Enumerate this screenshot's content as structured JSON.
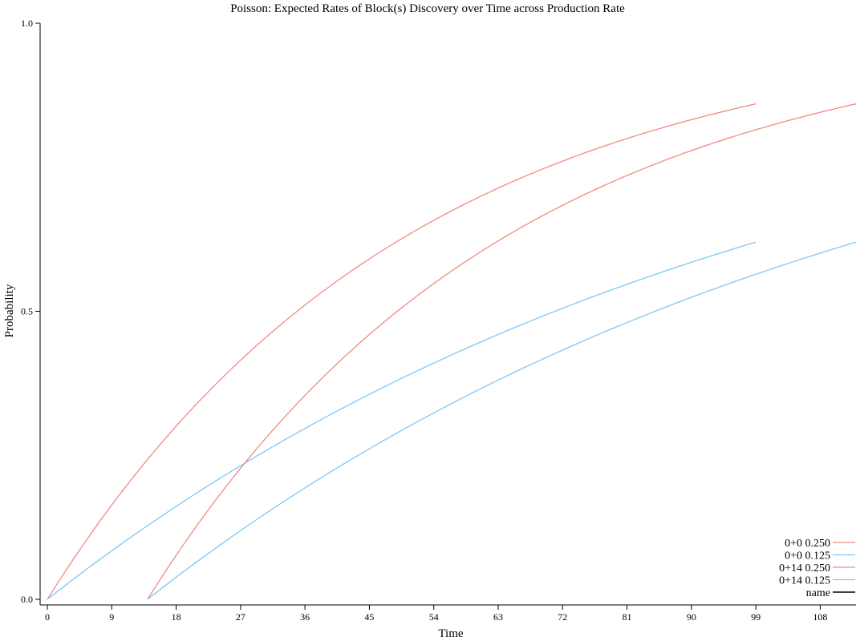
{
  "chart_data": {
    "type": "line",
    "title": "Poisson: Expected Rates of Block(s) Discovery over Time across Production Rate",
    "xlabel": "Time",
    "ylabel": "Probability",
    "xlim": [
      0,
      113
    ],
    "ylim": [
      0,
      1
    ],
    "x_ticks": [
      "0",
      "9",
      "18",
      "27",
      "36",
      "45",
      "54",
      "63",
      "72",
      "81",
      "90",
      "99",
      "108"
    ],
    "y_ticks": [
      "0.0",
      "0.5",
      "1.0"
    ],
    "grid": false,
    "legend_position": "bottom-right",
    "series": [
      {
        "name": "0+0 0.250",
        "color": "#f08a80",
        "rate": 0.25,
        "offset": 0,
        "x_start": 0,
        "x_end": 99,
        "y_end": 0.86
      },
      {
        "name": "0+0 0.125",
        "color": "#7cc8f8",
        "rate": 0.125,
        "offset": 0,
        "x_start": 0,
        "x_end": 99,
        "y_end": 0.62
      },
      {
        "name": "0+14 0.250",
        "color": "#f08a80",
        "rate": 0.25,
        "offset": 14,
        "x_start": 14,
        "x_end": 113,
        "y_end": 0.86
      },
      {
        "name": "0+14 0.125",
        "color": "#7cc8f8",
        "rate": 0.125,
        "offset": 14,
        "x_start": 14,
        "x_end": 113,
        "y_end": 0.62
      },
      {
        "name": "name",
        "color": "#000000",
        "legend_only": true
      }
    ]
  }
}
